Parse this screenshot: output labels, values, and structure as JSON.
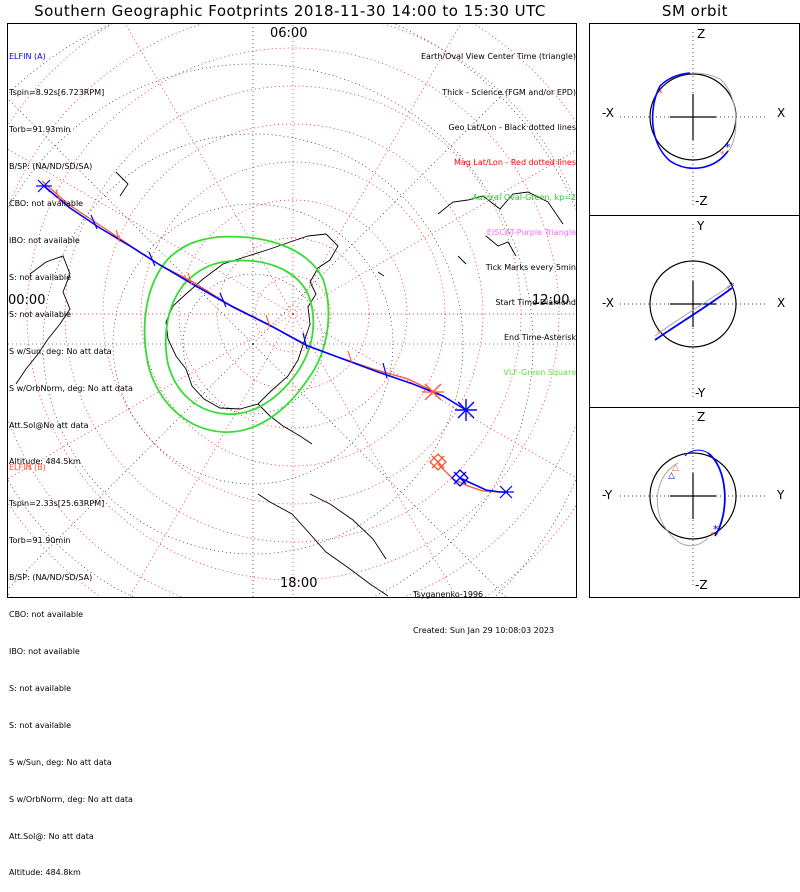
{
  "title": "Southern Geographic Footprints 2018-11-30 14:00 to 15:30 UTC",
  "sm_title": "SM orbit",
  "map": {
    "time_labels": {
      "top": "06:00",
      "left": "00:00",
      "right": "12:00",
      "bottom": "18:00"
    }
  },
  "elfin_a": {
    "lines": [
      "ELFIN (A)",
      "Tspin=8.92s[6.723RPM]",
      "Torb=91.93min",
      "B/SP: (NA/ND/SD/SA)",
      "CBO: not available",
      "IBO: not available",
      "S: not available",
      "S: not available",
      "S w/Sun, deg: No att data",
      "S w/OrbNorm, deg: No att data",
      "Att.Sol@No att data",
      "Altitude: 484.5km"
    ]
  },
  "elfin_b": {
    "lines": [
      "ELFIN (B)",
      "Tspin=2.33s[25.63RPM]",
      "Torb=91.90min",
      "B/SP: (NA/ND/SD/SA)",
      "CBO: not available",
      "IBO: not available",
      "S: not available",
      "S: not available",
      "S w/Sun, deg: No att data",
      "S w/OrbNorm, deg: No att data",
      "Att.Sol@: No att data",
      "Altitude: 484.8km"
    ]
  },
  "legend": [
    {
      "text": "Earth/Oval View Center Time (triangle)",
      "color": "#000000"
    },
    {
      "text": "Thick - Science (FGM and/or EPD)",
      "color": "#000000"
    },
    {
      "text": "Geo Lat/Lon - Black dotted lines",
      "color": "#000000"
    },
    {
      "text": "Mag Lat/Lon - Red dotted lines",
      "color": "#ff0000"
    },
    {
      "text": "Auroral Oval-Green, kp=2",
      "color": "#22cc22"
    },
    {
      "text": "EISCAT-Purple Triangle",
      "color": "#ff66ff"
    },
    {
      "text": "Tick Marks every 5min",
      "color": "#000000"
    },
    {
      "text": "Start Time-Diamond",
      "color": "#000000"
    },
    {
      "text": "End Time-Asterisk",
      "color": "#000000"
    },
    {
      "text": "VLF-Green Square",
      "color": "#66dd44"
    }
  ],
  "credit": {
    "line1": "Tsyganenko-1996",
    "line2": "Created: Sun Jan 29 10:08:03 2023"
  },
  "sm_panels": {
    "p1": {
      "top": "Z",
      "bottom": "-Z",
      "left": "-X",
      "right": "X"
    },
    "p2": {
      "top": "Y",
      "bottom": "-Y",
      "left": "-X",
      "right": "X"
    },
    "p3": {
      "top": "Z",
      "bottom": "-Z",
      "left": "-Y",
      "right": "Y"
    }
  },
  "colors": {
    "elfin_a": "#0000ff",
    "elfin_b": "#ff5533",
    "geo_grid": "#000000",
    "mag_grid": "#ff0000",
    "oval": "#33dd33"
  }
}
